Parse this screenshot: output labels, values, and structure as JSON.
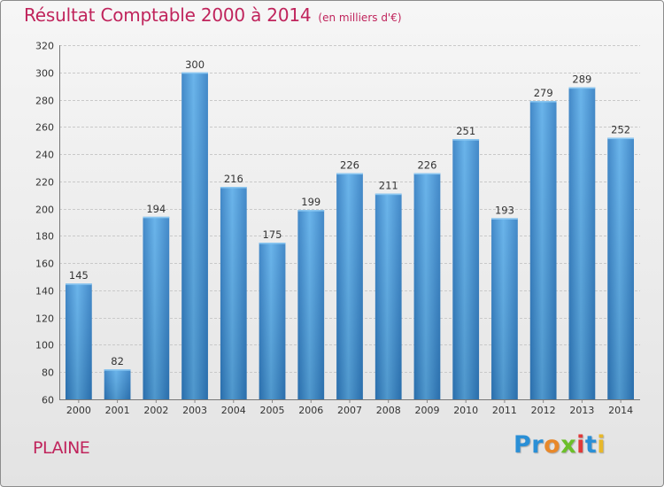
{
  "header": {
    "title": "Résultat Comptable 2000 à 2014",
    "unit": "(en milliers d'€)"
  },
  "footer": {
    "commune": "PLAINE",
    "logo_letters": [
      "P",
      "r",
      "o",
      "x",
      "i",
      "t",
      "i"
    ],
    "logo_colors": [
      "#2a8fd6",
      "#2a8fd6",
      "#e8882a",
      "#6cbf2a",
      "#e03a3a",
      "#2a8fd6",
      "#e8b82a"
    ]
  },
  "chart_data": {
    "type": "bar",
    "title": "Résultat Comptable 2000 à 2014",
    "xlabel": "",
    "ylabel": "",
    "categories": [
      "2000",
      "2001",
      "2002",
      "2003",
      "2004",
      "2005",
      "2006",
      "2007",
      "2008",
      "2009",
      "2010",
      "2011",
      "2012",
      "2013",
      "2014"
    ],
    "values": [
      145,
      82,
      194,
      300,
      216,
      175,
      199,
      226,
      211,
      226,
      251,
      193,
      279,
      289,
      252
    ],
    "ylim": [
      60,
      320
    ],
    "yticks": [
      60,
      80,
      100,
      120,
      140,
      160,
      180,
      200,
      220,
      240,
      260,
      280,
      300,
      320
    ],
    "grid": true,
    "bar_color": "#3a8fd6"
  }
}
